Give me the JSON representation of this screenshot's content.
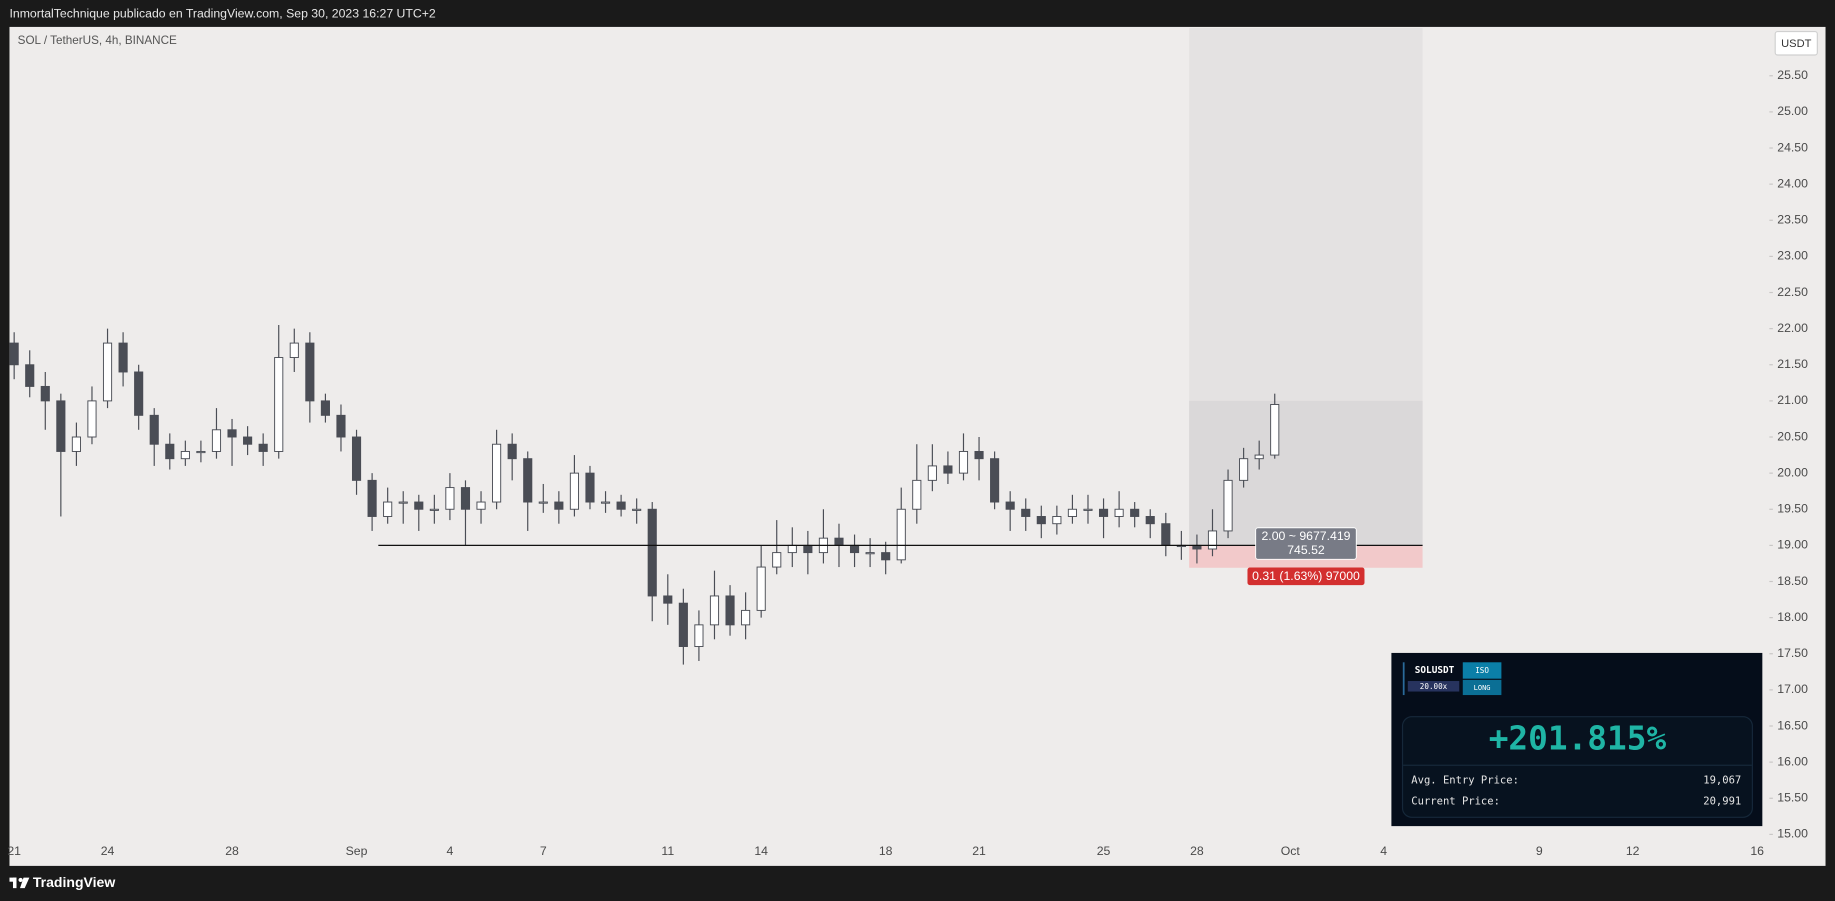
{
  "header": {
    "title": "InmortalTechnique publicado en TradingView.com, Sep 30, 2023 16:27 UTC+2"
  },
  "chart_data": {
    "type": "candlestick",
    "title": "SOL / TetherUS, 4h, BINANCE",
    "currency": "USDT",
    "categories": [
      "21",
      null,
      null,
      null,
      null,
      null,
      "24",
      null,
      null,
      null,
      null,
      null,
      null,
      null,
      "28",
      null,
      null,
      null,
      null,
      null,
      null,
      null,
      "Sep",
      null,
      null,
      null,
      null,
      null,
      "4",
      null,
      null,
      null,
      null,
      null,
      "7",
      null,
      null,
      null,
      null,
      null,
      null,
      null,
      "11",
      null,
      null,
      null,
      null,
      null,
      "14",
      null,
      null,
      null,
      null,
      null,
      null,
      null,
      "18",
      null,
      null,
      null,
      null,
      null,
      "21",
      null,
      null,
      null,
      null,
      null,
      null,
      null,
      "25",
      null,
      null,
      null,
      null,
      null,
      "28",
      null,
      null,
      null,
      null,
      null,
      "Oct",
      null,
      null,
      null,
      null,
      null,
      "4",
      null,
      null,
      null,
      null,
      null,
      null,
      null,
      null,
      null,
      "9",
      null,
      null,
      null,
      null,
      null,
      "12",
      null,
      null,
      null,
      null,
      null,
      null,
      null,
      "16"
    ],
    "open": [
      21.8,
      21.5,
      21.2,
      21.0,
      20.3,
      20.5,
      21.0,
      21.8,
      21.4,
      20.8,
      20.4,
      20.2,
      20.3,
      20.3,
      20.6,
      20.5,
      20.4,
      20.3,
      21.6,
      21.8,
      21.0,
      20.8,
      20.5,
      19.9,
      19.4,
      19.6,
      19.6,
      19.5,
      19.5,
      19.8,
      19.5,
      19.6,
      20.4,
      20.2,
      19.6,
      19.6,
      19.5,
      20.0,
      19.6,
      19.6,
      19.5,
      19.5,
      18.3,
      18.2,
      17.6,
      17.9,
      18.3,
      17.9,
      18.1,
      18.7,
      18.9,
      19.0,
      18.9,
      19.1,
      19.0,
      18.9,
      18.9,
      18.8,
      19.5,
      19.9,
      20.1,
      20.0,
      20.3,
      20.2,
      19.6,
      19.5,
      19.4,
      19.3,
      19.4,
      19.5,
      19.5,
      19.4,
      19.5,
      19.4,
      19.3,
      19.0,
      19.0,
      18.95,
      19.2,
      19.9,
      20.2,
      20.25,
      null,
      null,
      null,
      null,
      null,
      null,
      null,
      null,
      null,
      null,
      null,
      null,
      null,
      null,
      null,
      null,
      null,
      null,
      null,
      null,
      null,
      null,
      null,
      null,
      null,
      null,
      null,
      null,
      null,
      null,
      null
    ],
    "high": [
      21.95,
      21.7,
      21.4,
      21.1,
      20.7,
      21.2,
      22.0,
      21.95,
      21.5,
      20.9,
      20.55,
      20.45,
      20.45,
      20.9,
      20.75,
      20.65,
      20.55,
      22.05,
      22.0,
      21.95,
      21.1,
      20.95,
      20.6,
      20.0,
      19.8,
      19.75,
      19.7,
      19.7,
      20.0,
      19.9,
      19.75,
      20.6,
      20.55,
      20.3,
      19.85,
      19.75,
      20.25,
      20.1,
      19.75,
      19.7,
      19.65,
      19.6,
      18.6,
      18.4,
      18.1,
      18.65,
      18.45,
      18.35,
      19.0,
      19.35,
      19.25,
      19.2,
      19.5,
      19.3,
      19.15,
      19.1,
      19.05,
      19.8,
      20.4,
      20.4,
      20.3,
      20.55,
      20.5,
      20.3,
      19.75,
      19.65,
      19.55,
      19.55,
      19.7,
      19.7,
      19.65,
      19.75,
      19.6,
      19.5,
      19.45,
      19.2,
      19.15,
      19.5,
      20.05,
      20.35,
      20.45,
      21.1,
      null,
      null,
      null,
      null,
      null,
      null,
      null,
      null,
      null,
      null,
      null,
      null,
      null,
      null,
      null,
      null,
      null,
      null,
      null,
      null,
      null,
      null,
      null,
      null,
      null,
      null,
      null,
      null,
      null,
      null,
      null
    ],
    "low": [
      21.3,
      21.05,
      20.6,
      19.4,
      20.1,
      20.4,
      20.9,
      21.2,
      20.6,
      20.1,
      20.05,
      20.1,
      20.15,
      20.2,
      20.1,
      20.25,
      20.1,
      20.2,
      21.4,
      20.7,
      20.7,
      20.3,
      19.7,
      19.2,
      19.3,
      19.3,
      19.2,
      19.3,
      19.35,
      19.0,
      19.3,
      19.5,
      19.9,
      19.2,
      19.45,
      19.3,
      19.4,
      19.5,
      19.45,
      19.4,
      19.3,
      17.95,
      17.9,
      17.35,
      17.4,
      17.7,
      17.75,
      17.7,
      18.0,
      18.6,
      18.7,
      18.6,
      18.75,
      18.7,
      18.7,
      18.7,
      18.6,
      18.75,
      19.3,
      19.75,
      19.85,
      19.9,
      19.9,
      19.5,
      19.2,
      19.2,
      19.1,
      19.15,
      19.3,
      19.3,
      19.1,
      19.25,
      19.25,
      19.1,
      18.85,
      18.8,
      18.75,
      18.85,
      19.1,
      19.8,
      20.05,
      20.2,
      null,
      null,
      null,
      null,
      null,
      null,
      null,
      null,
      null,
      null,
      null,
      null,
      null,
      null,
      null,
      null,
      null,
      null,
      null,
      null,
      null,
      null,
      null,
      null,
      null,
      null,
      null,
      null,
      null,
      null,
      null
    ],
    "close": [
      21.5,
      21.2,
      21.0,
      20.3,
      20.5,
      21.0,
      21.8,
      21.4,
      20.8,
      20.4,
      20.2,
      20.3,
      20.3,
      20.6,
      20.5,
      20.4,
      20.3,
      21.6,
      21.8,
      21.0,
      20.8,
      20.5,
      19.9,
      19.4,
      19.6,
      19.6,
      19.5,
      19.5,
      19.8,
      19.5,
      19.6,
      20.4,
      20.2,
      19.6,
      19.6,
      19.5,
      20.0,
      19.6,
      19.6,
      19.5,
      19.5,
      18.3,
      18.2,
      17.6,
      17.9,
      18.3,
      17.9,
      18.1,
      18.7,
      18.9,
      19.0,
      18.9,
      19.1,
      19.0,
      18.9,
      18.9,
      18.8,
      19.5,
      19.9,
      20.1,
      20.0,
      20.3,
      20.2,
      19.6,
      19.5,
      19.4,
      19.3,
      19.4,
      19.5,
      19.5,
      19.4,
      19.5,
      19.4,
      19.3,
      19.0,
      19.0,
      18.95,
      19.2,
      19.9,
      20.2,
      20.25,
      20.95,
      null,
      null,
      null,
      null,
      null,
      null,
      null,
      null,
      null,
      null,
      null,
      null,
      null,
      null,
      null,
      null,
      null,
      null,
      null,
      null,
      null,
      null,
      null,
      null,
      null,
      null,
      null,
      null,
      null,
      null,
      null
    ],
    "up_color": "#ffffff",
    "down_color": "#4a4d55",
    "wick_color": "#4a4d55",
    "ylim": [
      14.92,
      26.16
    ],
    "yticks": [
      {
        "value": 15.0,
        "label": "15.00"
      },
      {
        "value": 15.5,
        "label": "15.50"
      },
      {
        "value": 16.0,
        "label": "16.00"
      },
      {
        "value": 16.5,
        "label": "16.50"
      },
      {
        "value": 17.0,
        "label": "17.00"
      },
      {
        "value": 17.5,
        "label": "17.50"
      },
      {
        "value": 18.0,
        "label": "18.00"
      },
      {
        "value": 18.5,
        "label": "18.50"
      },
      {
        "value": 19.0,
        "label": "19.00"
      },
      {
        "value": 19.5,
        "label": "19.50"
      },
      {
        "value": 20.0,
        "label": "20.00"
      },
      {
        "value": 20.5,
        "label": "20.50"
      },
      {
        "value": 21.0,
        "label": "21.00"
      },
      {
        "value": 21.5,
        "label": "21.50"
      },
      {
        "value": 22.0,
        "label": "22.00"
      },
      {
        "value": 22.5,
        "label": "22.50"
      },
      {
        "value": 23.0,
        "label": "23.00"
      },
      {
        "value": 23.5,
        "label": "23.50"
      },
      {
        "value": 24.0,
        "label": "24.00"
      },
      {
        "value": 24.5,
        "label": "24.50"
      },
      {
        "value": 25.0,
        "label": "25.00"
      },
      {
        "value": 25.5,
        "label": "25.50"
      }
    ],
    "grid": false,
    "hline": 19.0,
    "position": {
      "top": 21.0,
      "entry": 19.0,
      "stop": 18.69,
      "label": "2.00 ~ 9677.419",
      "label_2": "745.52",
      "stop_label": "0.31 (1.63%) 97000"
    }
  },
  "panel": {
    "symbol": "SOLUSDT",
    "leverage": "20.00x",
    "margin": "ISO",
    "side": "LONG",
    "pnl": "+201.815%",
    "rows": [
      [
        "Avg. Entry Price:",
        "19,067"
      ],
      [
        "Current Price:",
        "20,991"
      ]
    ]
  },
  "footer": {
    "brand": "TradingView"
  }
}
